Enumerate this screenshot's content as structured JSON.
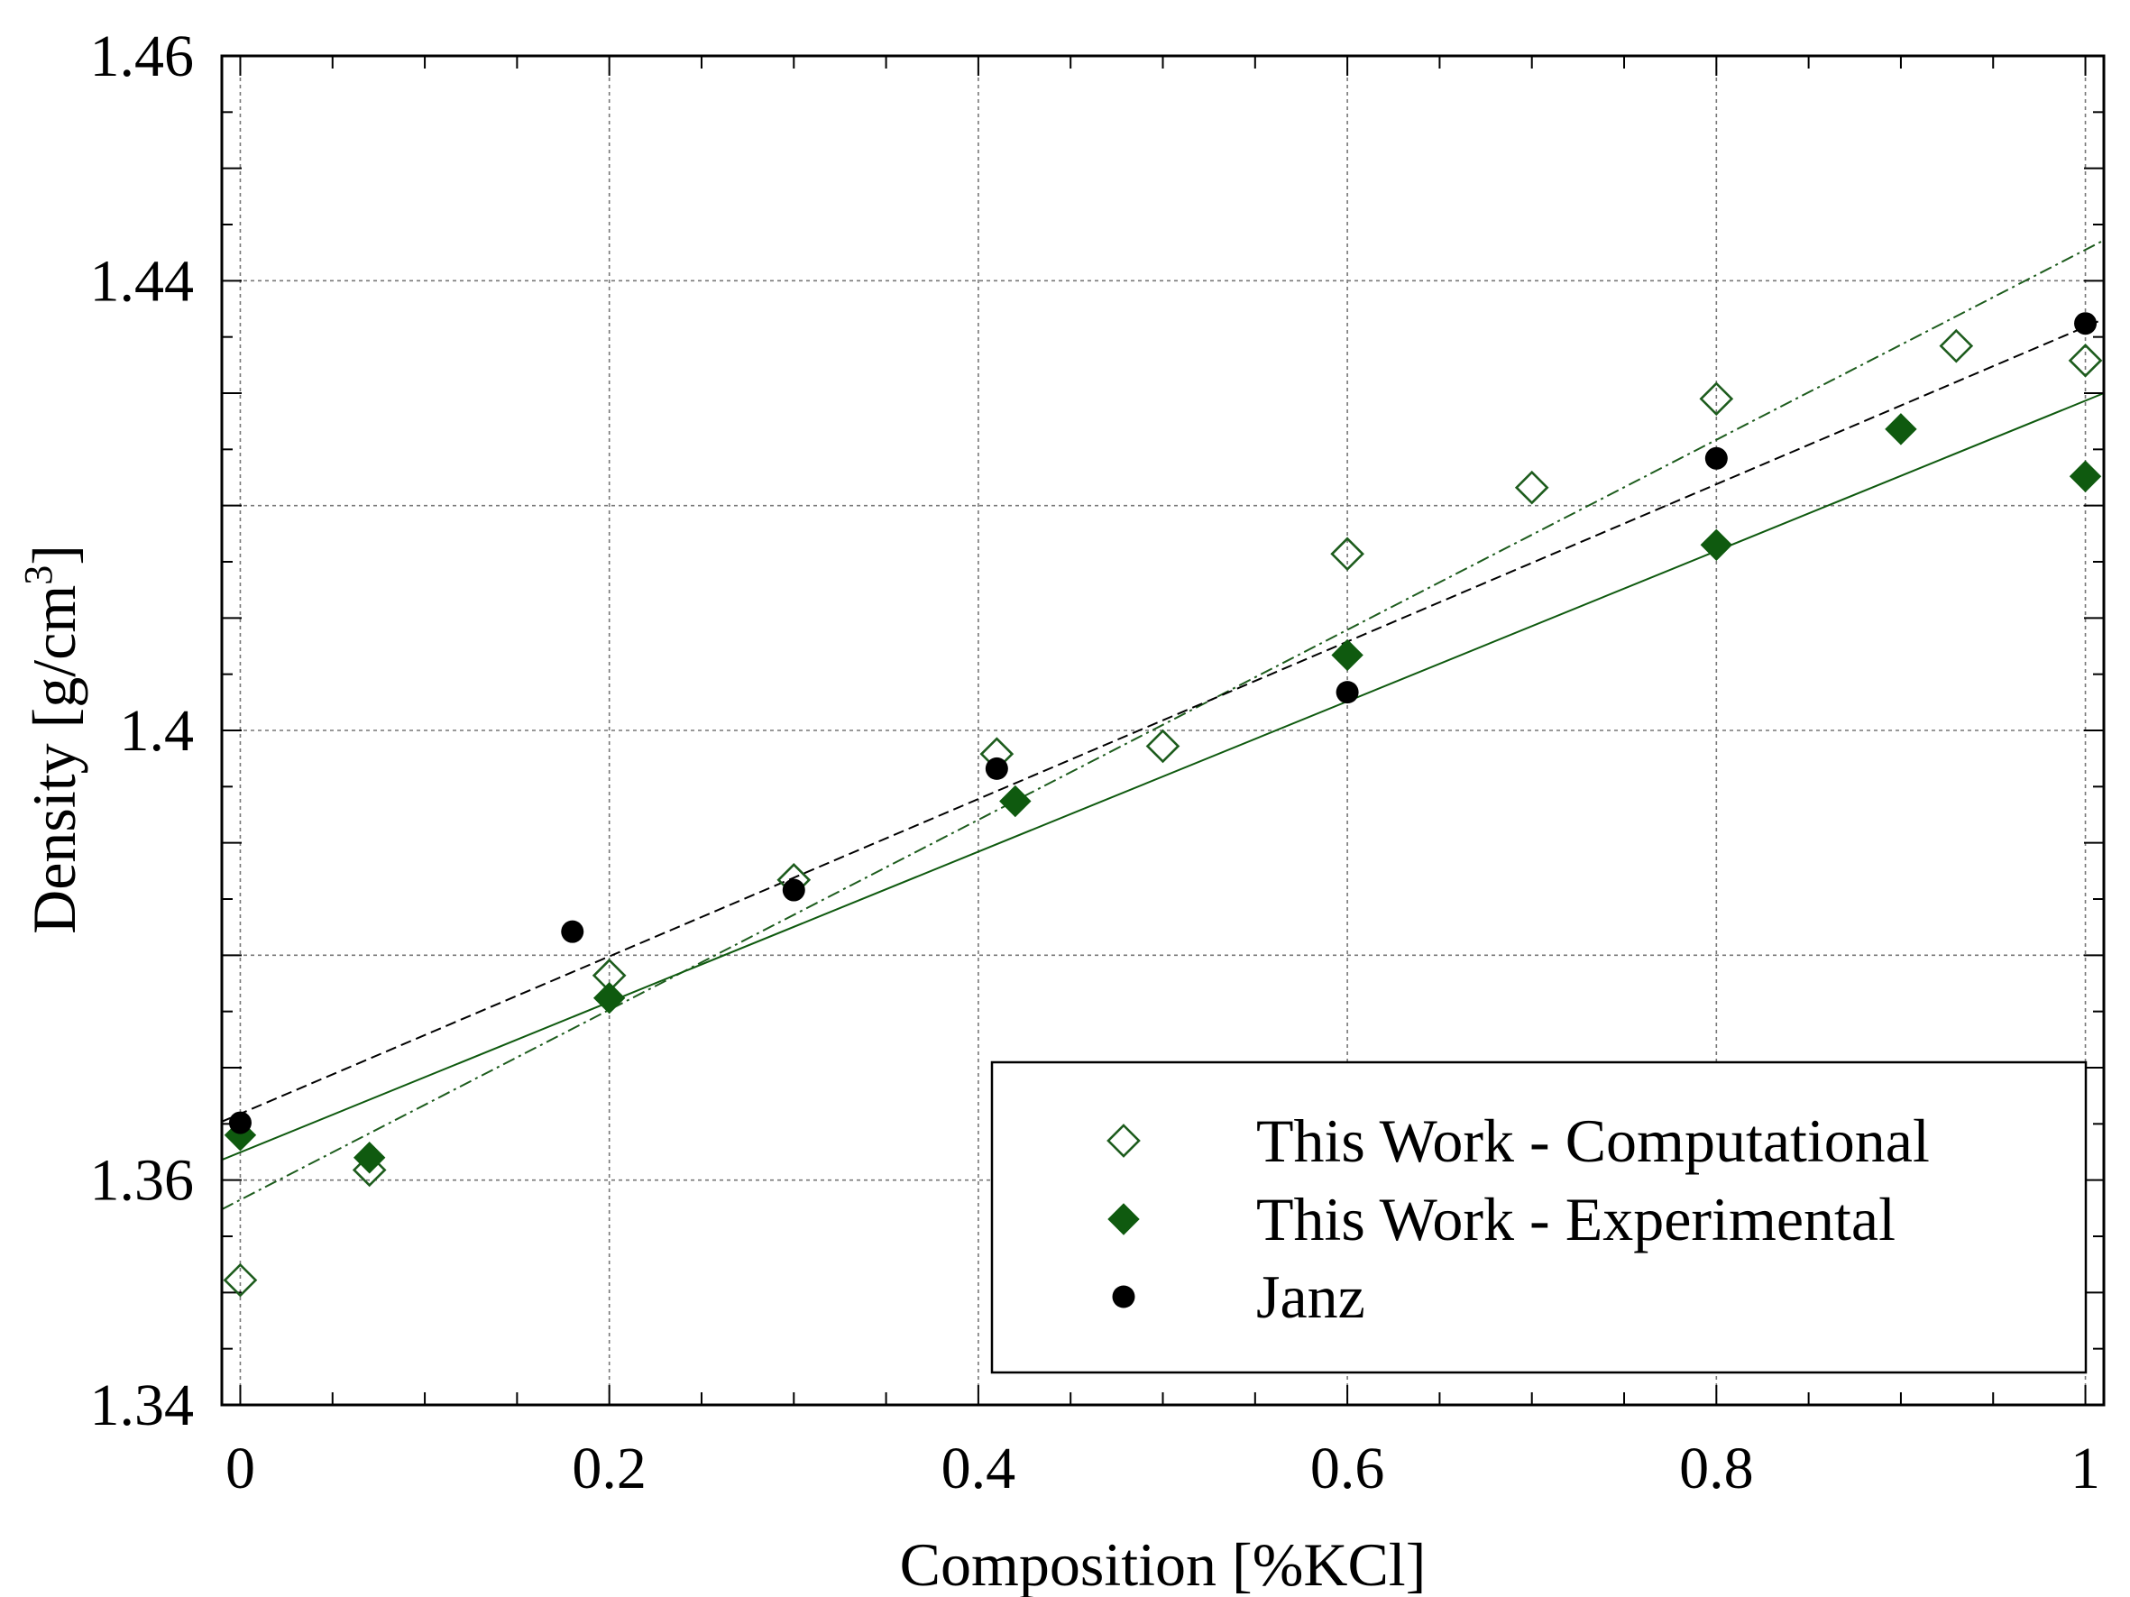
{
  "chart_data": {
    "type": "scatter",
    "title": "",
    "xlabel": "Composition [%KCl]",
    "ylabel_prefix": "Density [g/cm",
    "ylabel_sup": "3",
    "ylabel_suffix": "]",
    "xlim": [
      -0.01,
      1.01
    ],
    "ylim": [
      1.34,
      1.46
    ],
    "grid": true,
    "legend_position": "bottom-right",
    "x_ticks": [
      {
        "value": 0,
        "label": "0"
      },
      {
        "value": 0.2,
        "label": "0.2"
      },
      {
        "value": 0.4,
        "label": "0.4"
      },
      {
        "value": 0.6,
        "label": "0.6"
      },
      {
        "value": 0.8,
        "label": "0.8"
      },
      {
        "value": 1,
        "label": "1"
      }
    ],
    "x_minor_step": 0.05,
    "y_ticks": [
      {
        "value": 1.34,
        "label": "1.34"
      },
      {
        "value": 1.36,
        "label": "1.36"
      },
      {
        "value": 1.4,
        "label": "1.4"
      },
      {
        "value": 1.44,
        "label": "1.44"
      },
      {
        "value": 1.46,
        "label": "1.46"
      }
    ],
    "y_grid": [
      1.36,
      1.38,
      1.4,
      1.42,
      1.44
    ],
    "y_major_step": 0.01,
    "y_minor_step": 0.005,
    "series": [
      {
        "name": "This Work - Computational",
        "marker": "diamond-open",
        "color": "#1d5c1d",
        "x": [
          0.0,
          0.07,
          0.2,
          0.3,
          0.41,
          0.5,
          0.6,
          0.7,
          0.8,
          0.93,
          1.0
        ],
        "y": [
          1.3511,
          1.3609,
          1.3782,
          1.3867,
          1.3979,
          1.3986,
          1.4157,
          1.4216,
          1.4295,
          1.4342,
          1.4329
        ],
        "fit": {
          "x0": -0.01,
          "y0": 1.3574,
          "x1": 1.01,
          "y1": 1.4436,
          "style": "dash-dot"
        }
      },
      {
        "name": "This Work - Experimental",
        "marker": "diamond-filled",
        "color": "#0f5a0f",
        "x": [
          0.0,
          0.07,
          0.2,
          0.42,
          0.6,
          0.8,
          0.9,
          1.0
        ],
        "y": [
          1.364,
          1.362,
          1.3762,
          1.3937,
          1.4067,
          1.4165,
          1.4268,
          1.4226
        ],
        "fit": {
          "x0": -0.01,
          "y0": 1.3618,
          "x1": 1.01,
          "y1": 1.43,
          "style": "solid"
        }
      },
      {
        "name": "Janz",
        "marker": "circle-filled",
        "color": "#000000",
        "x": [
          0.0,
          0.18,
          0.3,
          0.41,
          0.6,
          0.8,
          1.0
        ],
        "y": [
          1.3651,
          1.3821,
          1.3858,
          1.3966,
          1.4034,
          1.4242,
          1.4362
        ],
        "fit": {
          "x0": -0.01,
          "y0": 1.3652,
          "x1": 1.01,
          "y1": 1.4366,
          "style": "dashed"
        }
      }
    ]
  }
}
